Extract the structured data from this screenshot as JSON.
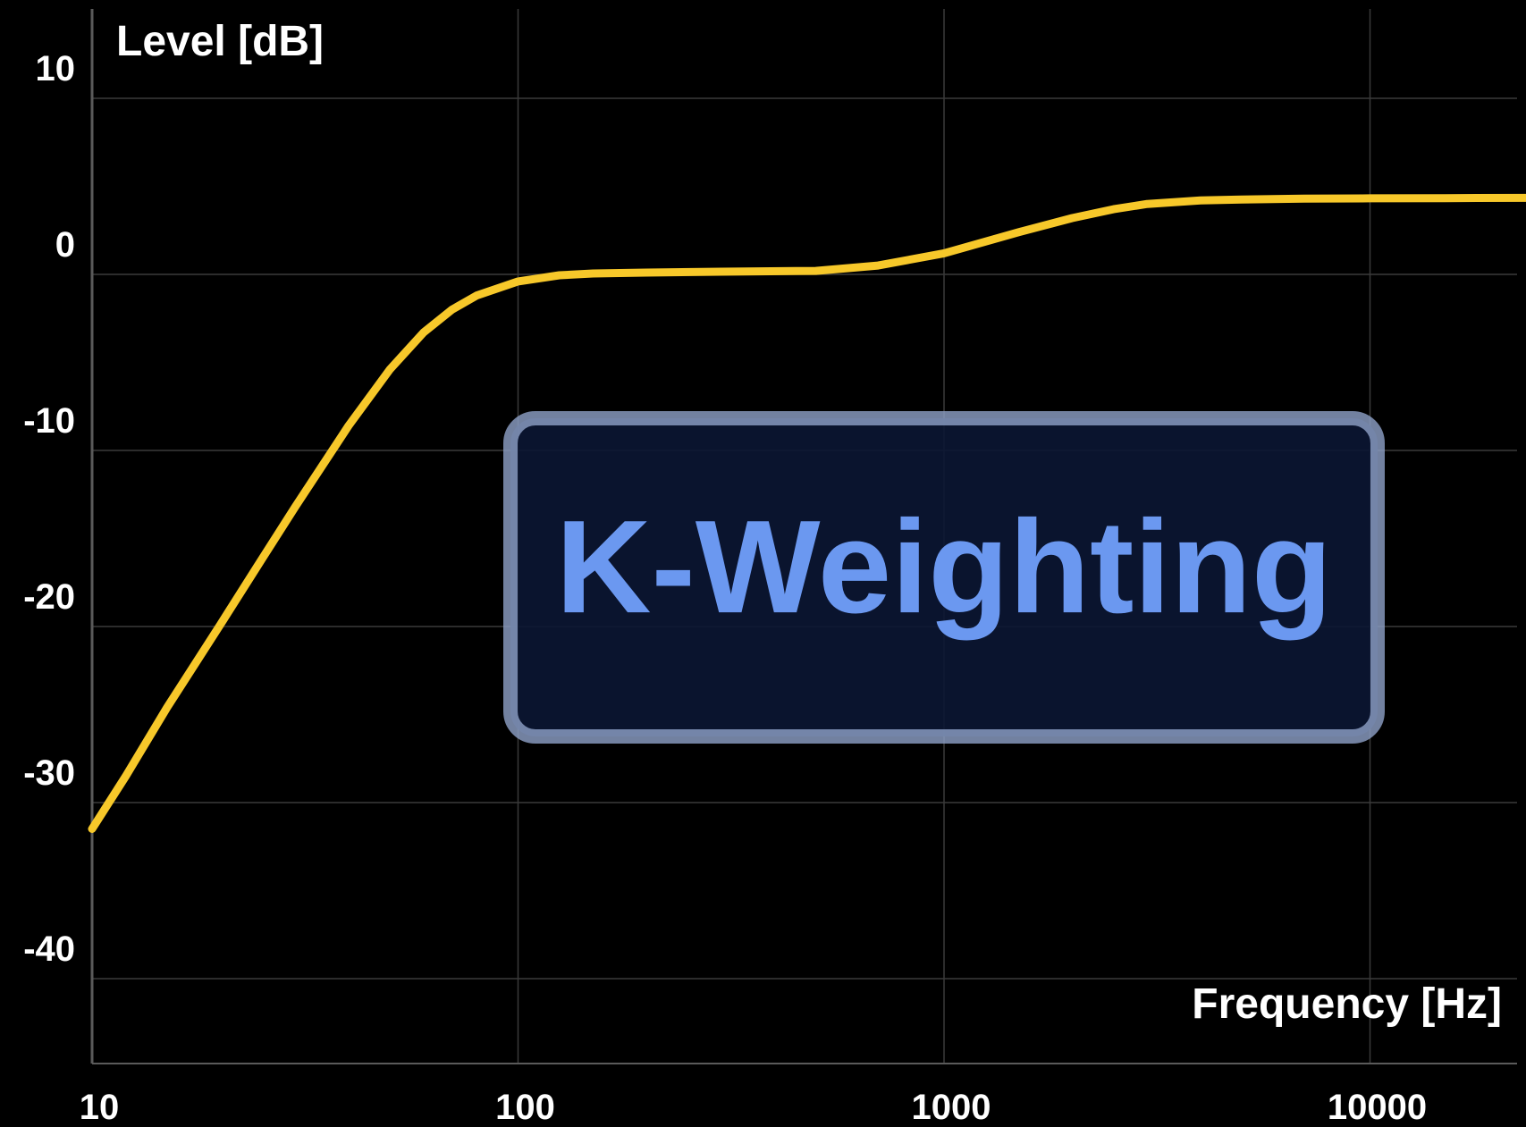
{
  "colors": {
    "background": "#000000",
    "grid": "#3a3a3a",
    "axis": "#5a5a5a",
    "curve": "#f7c82a",
    "text": "#ffffff",
    "overlay_fill": "#0b1633",
    "overlay_border": "#8ea1c8",
    "overlay_text": "#6b98f0"
  },
  "chart_data": {
    "type": "line",
    "xscale": "log",
    "xlim": [
      10,
      24000
    ],
    "ylim": [
      -45,
      15
    ],
    "xticks": [
      10,
      100,
      1000,
      10000
    ],
    "xtick_labels": [
      "10",
      "100",
      "1000",
      "10000"
    ],
    "yticks": [
      10,
      0,
      -10,
      -20,
      -30,
      -40
    ],
    "ytick_labels": [
      "10",
      "0",
      "-10",
      "-20",
      "-30",
      "-40"
    ],
    "xlabel": "Frequency [Hz]",
    "ylabel": "Level [dB]",
    "grid": true,
    "overlay_label": "K-Weighting",
    "series": [
      {
        "x": [
          10,
          12,
          15,
          20,
          25,
          30,
          40,
          50,
          60,
          70,
          80,
          100,
          125,
          150,
          200,
          300,
          500,
          700,
          1000,
          1500,
          2000,
          2500,
          3000,
          4000,
          5000,
          7000,
          10000,
          15000,
          24000
        ],
        "y": [
          -31.5,
          -28.5,
          -24.6,
          -19.9,
          -16.2,
          -13.2,
          -8.6,
          -5.4,
          -3.3,
          -2.0,
          -1.2,
          -0.4,
          -0.05,
          0.05,
          0.1,
          0.15,
          0.2,
          0.5,
          1.2,
          2.4,
          3.2,
          3.7,
          4.0,
          4.2,
          4.25,
          4.3,
          4.32,
          4.33,
          4.35
        ]
      }
    ]
  }
}
